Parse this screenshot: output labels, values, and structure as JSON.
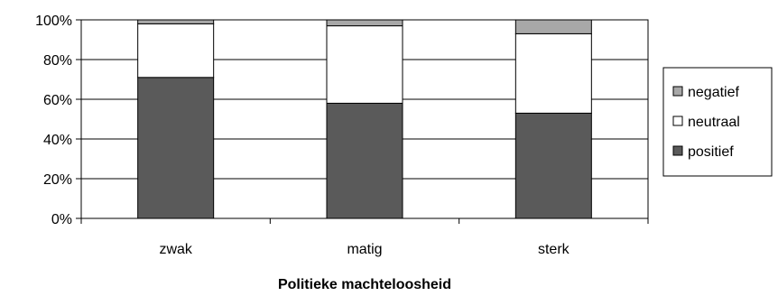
{
  "chart_data": {
    "type": "bar",
    "stacked": true,
    "percent": true,
    "categories": [
      "zwak",
      "matig",
      "sterk"
    ],
    "series": [
      {
        "name": "positief",
        "values": [
          71,
          58,
          53
        ],
        "color": "#5a5a5a"
      },
      {
        "name": "neutraal",
        "values": [
          27,
          39,
          40
        ],
        "color": "#ffffff"
      },
      {
        "name": "negatief",
        "values": [
          2,
          3,
          7
        ],
        "color": "#a8a8a8"
      }
    ],
    "yticks": [
      "0%",
      "20%",
      "40%",
      "60%",
      "80%",
      "100%"
    ],
    "ylim": [
      0,
      100
    ],
    "xlabel": "Politieke machteloosheid",
    "ylabel": "",
    "grid": true,
    "legend_position": "right",
    "legend_order": [
      "negatief",
      "neutraal",
      "positief"
    ]
  }
}
